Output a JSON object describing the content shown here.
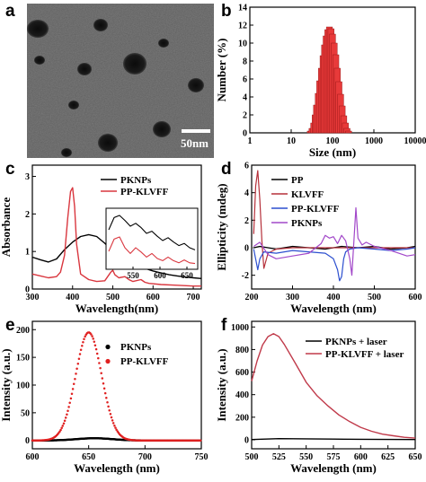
{
  "panels": {
    "a": {
      "label": "a",
      "scale_bar_text": "50nm"
    },
    "b": {
      "label": "b",
      "chart_data": {
        "type": "bar",
        "xscale": "log",
        "xlabel": "Size (nm)",
        "ylabel": "Number (%)",
        "xlim": [
          1,
          10000
        ],
        "ylim": [
          0,
          14
        ],
        "xticks": [
          1,
          10,
          100,
          1000,
          10000
        ],
        "xtick_labels": [
          "1",
          "10",
          "100",
          "1000",
          "10000"
        ],
        "yticks": [
          0,
          2,
          4,
          6,
          8,
          10,
          12,
          14
        ],
        "bar_color": "#e83a3a",
        "x": [
          29,
          32,
          35,
          38,
          41,
          45,
          49,
          54,
          59,
          64,
          70,
          77,
          84,
          92,
          100,
          110,
          120,
          131,
          143,
          157,
          171,
          187,
          205,
          224,
          245
        ],
        "values": [
          0.2,
          0.5,
          1.1,
          2.0,
          3.1,
          4.4,
          5.8,
          7.2,
          8.6,
          9.8,
          10.8,
          11.5,
          11.8,
          11.6,
          11.0,
          10.0,
          8.7,
          7.2,
          5.7,
          4.3,
          3.0,
          1.9,
          1.1,
          0.5,
          0.2
        ]
      }
    },
    "c": {
      "label": "c",
      "chart_data": {
        "type": "line",
        "xlabel": "Wavelength(nm)",
        "ylabel": "Absorbance",
        "xlim": [
          300,
          720
        ],
        "ylim": [
          0,
          3.3
        ],
        "xticks": [
          300,
          400,
          500,
          600,
          700
        ],
        "yticks": [
          0,
          1,
          2,
          3
        ],
        "legend_position": "top-right",
        "series": [
          {
            "name": "PKNPs",
            "color": "#000000",
            "x": [
              300,
              320,
              340,
              360,
              380,
              400,
              420,
              440,
              460,
              480,
              500,
              510,
              520,
              540,
              560,
              580,
              600,
              620,
              640,
              660,
              680,
              700,
              720
            ],
            "y": [
              0.85,
              0.78,
              0.72,
              0.8,
              1.05,
              1.25,
              1.4,
              1.45,
              1.4,
              1.22,
              1.0,
              0.9,
              0.82,
              0.7,
              0.62,
              0.55,
              0.48,
              0.43,
              0.38,
              0.35,
              0.32,
              0.3,
              0.28
            ]
          },
          {
            "name": "PP-KLVFF",
            "color": "#d9363e",
            "x": [
              300,
              320,
              340,
              360,
              370,
              380,
              388,
              395,
              400,
              405,
              410,
              420,
              440,
              460,
              480,
              495,
              500,
              505,
              515,
              530,
              540,
              550,
              570,
              580,
              590,
              620,
              660,
              700,
              720
            ],
            "y": [
              0.4,
              0.35,
              0.3,
              0.33,
              0.45,
              0.9,
              1.9,
              2.6,
              2.7,
              2.2,
              1.2,
              0.4,
              0.25,
              0.2,
              0.22,
              0.45,
              0.5,
              0.38,
              0.3,
              0.33,
              0.25,
              0.2,
              0.25,
              0.18,
              0.15,
              0.12,
              0.1,
              0.08,
              0.08
            ]
          }
        ],
        "inset": {
          "xlim": [
            500,
            670
          ],
          "xticks": [
            550,
            600,
            650
          ],
          "series": [
            {
              "name": "PKNPs",
              "color": "#000000",
              "x": [
                505,
                515,
                525,
                535,
                545,
                555,
                565,
                575,
                585,
                595,
                605,
                615,
                625,
                635,
                645,
                655,
                665
              ],
              "y": [
                0.55,
                0.72,
                0.75,
                0.68,
                0.6,
                0.64,
                0.58,
                0.5,
                0.53,
                0.46,
                0.4,
                0.44,
                0.38,
                0.33,
                0.36,
                0.3,
                0.27
              ]
            },
            {
              "name": "PP-KLVFF",
              "color": "#d9363e",
              "x": [
                505,
                515,
                525,
                535,
                545,
                555,
                565,
                575,
                585,
                595,
                605,
                615,
                625,
                635,
                645,
                655,
                665
              ],
              "y": [
                0.25,
                0.42,
                0.45,
                0.3,
                0.22,
                0.3,
                0.24,
                0.17,
                0.22,
                0.15,
                0.12,
                0.17,
                0.12,
                0.09,
                0.13,
                0.09,
                0.08
              ]
            }
          ]
        }
      }
    },
    "d": {
      "label": "d",
      "chart_data": {
        "type": "line",
        "xlabel": "Wavelength (nm)",
        "ylabel": "Ellipticity (mdeg)",
        "xlim": [
          200,
          600
        ],
        "ylim": [
          -3,
          6
        ],
        "xticks": [
          200,
          300,
          400,
          500,
          600
        ],
        "yticks": [
          -2,
          0,
          2,
          4,
          6
        ],
        "legend_position": "top-center",
        "series": [
          {
            "name": "PP",
            "color": "#000000",
            "x": [
              205,
              220,
              240,
              260,
              300,
              340,
              380,
              420,
              460,
              500,
              540,
              580,
              600
            ],
            "y": [
              0.0,
              0.1,
              0.0,
              -0.1,
              0.1,
              0.0,
              -0.1,
              0.1,
              0.0,
              0.1,
              -0.1,
              0.0,
              0.1
            ]
          },
          {
            "name": "KLVFF",
            "color": "#b5303a",
            "x": [
              205,
              210,
              215,
              220,
              225,
              230,
              240,
              260,
              300,
              400,
              500,
              600
            ],
            "y": [
              1.0,
              4.5,
              5.6,
              3.5,
              0.5,
              -1.5,
              -0.4,
              -0.1,
              0.0,
              0.0,
              0.0,
              0.0
            ]
          },
          {
            "name": "PP-KLVFF",
            "color": "#2c4fcf",
            "x": [
              205,
              215,
              220,
              230,
              260,
              300,
              340,
              380,
              400,
              410,
              415,
              420,
              425,
              430,
              440,
              460,
              500,
              540,
              580,
              600
            ],
            "y": [
              -0.1,
              -1.6,
              -0.8,
              -0.3,
              -0.4,
              -0.2,
              -0.3,
              -0.4,
              -0.8,
              -1.6,
              -2.4,
              -2.1,
              -0.8,
              -0.3,
              -0.1,
              0.0,
              -0.1,
              -0.2,
              -0.1,
              0.0
            ]
          },
          {
            "name": "PKNPs",
            "color": "#a248c9",
            "x": [
              205,
              220,
              240,
              260,
              300,
              340,
              370,
              380,
              390,
              400,
              410,
              420,
              430,
              440,
              445,
              450,
              455,
              460,
              470,
              480,
              500,
              540,
              580,
              600
            ],
            "y": [
              0.1,
              0.4,
              -0.5,
              -0.8,
              -0.6,
              -0.4,
              0.3,
              0.9,
              0.7,
              0.8,
              0.3,
              0.9,
              0.5,
              -0.8,
              -2.0,
              0.5,
              2.9,
              0.7,
              0.2,
              0.4,
              0.1,
              -0.2,
              -0.6,
              -0.5
            ]
          }
        ]
      }
    },
    "e": {
      "label": "e",
      "chart_data": {
        "type": "scatter",
        "xlabel": "Wavelength (nm)",
        "ylabel": "Intensity (a.u.)",
        "xlim": [
          600,
          750
        ],
        "ylim": [
          -15,
          215
        ],
        "xticks": [
          600,
          650,
          700,
          750
        ],
        "yticks": [
          0,
          50,
          100,
          150,
          200
        ],
        "legend_position": "top-right",
        "series": [
          {
            "name": "PKNPs",
            "color": "#000000",
            "peak_x": 655,
            "peak_y": 4,
            "sigma": 16,
            "baseline": 0
          },
          {
            "name": "PP-KLVFF",
            "color": "#e02020",
            "peak_x": 650,
            "peak_y": 195,
            "sigma": 11.5,
            "baseline": 0
          }
        ]
      }
    },
    "f": {
      "label": "f",
      "chart_data": {
        "type": "line",
        "xlabel": "Wavelength (nm)",
        "ylabel": "Intensity (a.u.)",
        "xlim": [
          500,
          650
        ],
        "ylim": [
          -80,
          1050
        ],
        "xticks": [
          500,
          525,
          550,
          575,
          600,
          625,
          650
        ],
        "yticks": [
          0,
          200,
          400,
          600,
          800,
          1000
        ],
        "legend_position": "top-right",
        "series": [
          {
            "name": "PKNPs + laser",
            "color": "#000000",
            "x": [
              500,
              525,
              550,
              575,
              600,
              625,
              650
            ],
            "y": [
              2,
              10,
              8,
              6,
              4,
              3,
              2
            ]
          },
          {
            "name": "PP-KLVFF + laser",
            "color": "#c03a4a",
            "x": [
              500,
              505,
              510,
              515,
              520,
              525,
              530,
              540,
              550,
              560,
              570,
              580,
              590,
              600,
              610,
              620,
              630,
              640,
              650
            ],
            "y": [
              520,
              700,
              840,
              915,
              940,
              915,
              845,
              680,
              510,
              390,
              300,
              220,
              160,
              110,
              75,
              50,
              35,
              22,
              15
            ]
          }
        ]
      }
    }
  }
}
